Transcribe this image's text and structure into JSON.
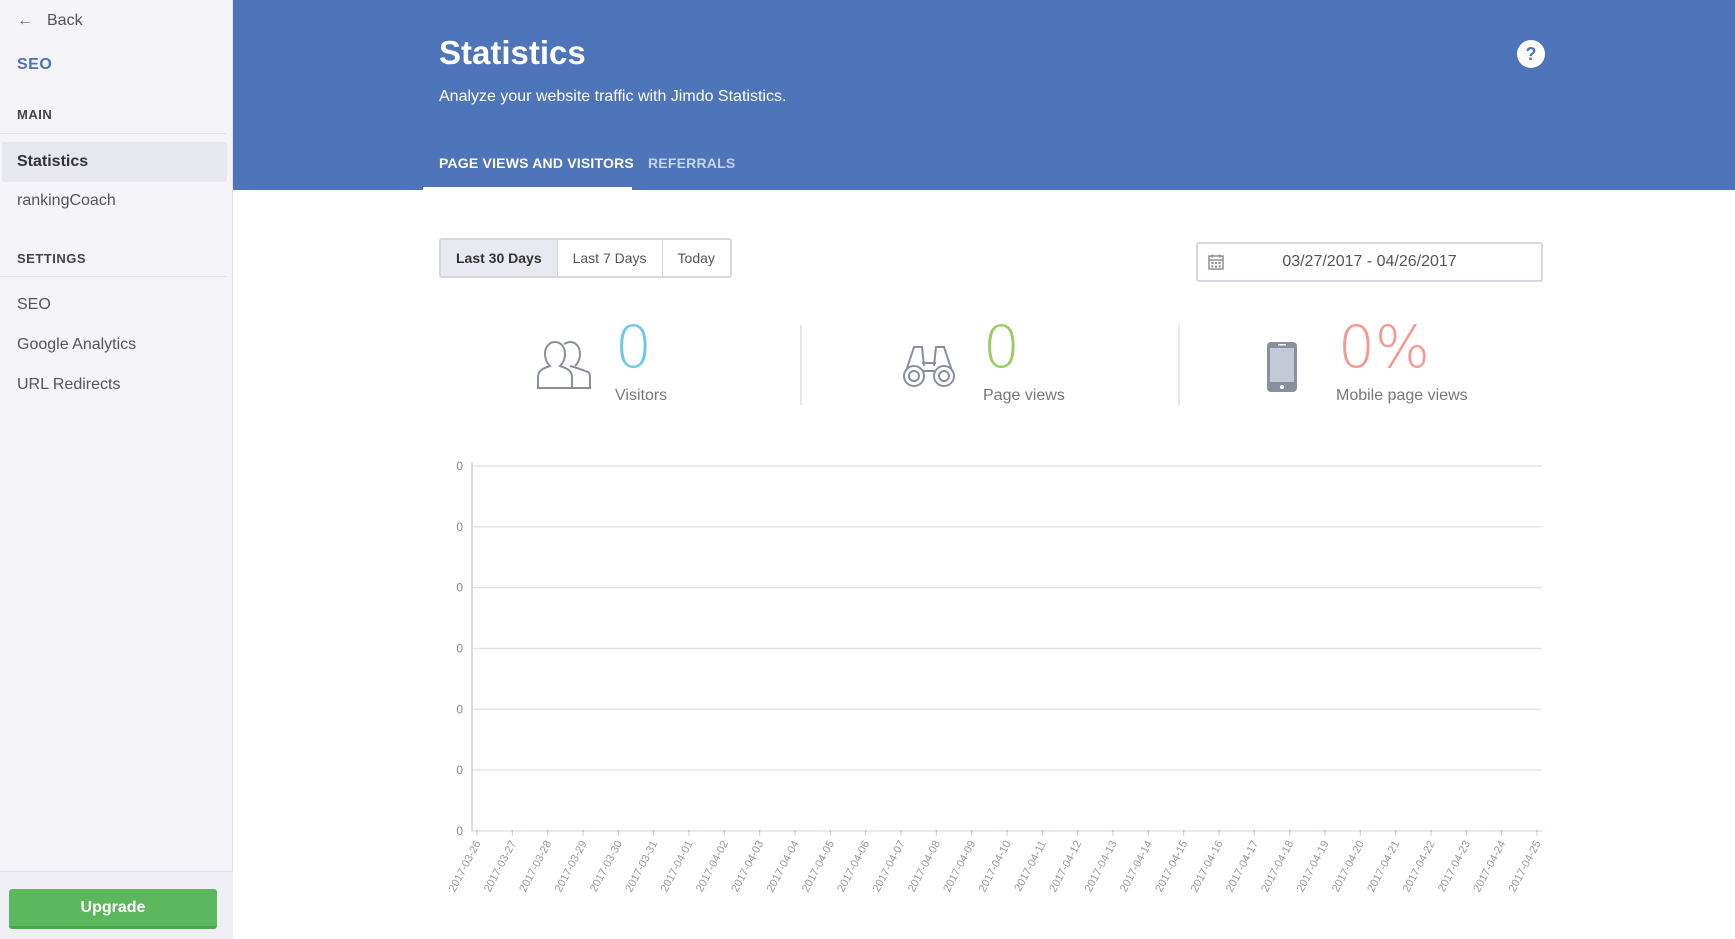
{
  "sidebar": {
    "back_label": "Back",
    "title": "SEO",
    "sections": [
      {
        "label": "MAIN",
        "items": [
          {
            "label": "Statistics",
            "active": true
          },
          {
            "label": "rankingCoach",
            "active": false
          }
        ]
      },
      {
        "label": "SETTINGS",
        "items": [
          {
            "label": "SEO",
            "active": false
          },
          {
            "label": "Google Analytics",
            "active": false
          },
          {
            "label": "URL Redirects",
            "active": false
          }
        ]
      }
    ],
    "upgrade_label": "Upgrade"
  },
  "header": {
    "title": "Statistics",
    "subtitle": "Analyze your website traffic with Jimdo Statistics.",
    "help_label": "?",
    "tabs": [
      {
        "label": "PAGE VIEWS AND VISITORS",
        "active": true
      },
      {
        "label": "REFERRALS",
        "active": false
      }
    ]
  },
  "filters": {
    "ranges": [
      {
        "label": "Last 30 Days",
        "active": true
      },
      {
        "label": "Last 7 Days",
        "active": false
      },
      {
        "label": "Today",
        "active": false
      }
    ],
    "date_range": "03/27/2017 - 04/26/2017"
  },
  "stats": [
    {
      "value": "0",
      "label": "Visitors",
      "icon": "users-icon",
      "color": "#6ec6ee"
    },
    {
      "value": "0",
      "label": "Page views",
      "icon": "binoculars-icon",
      "color": "#9ccb62"
    },
    {
      "value": "0%",
      "label": "Mobile page views",
      "icon": "smartphone-icon",
      "color": "#f4998c"
    }
  ],
  "colors": {
    "header": "#4e74ba",
    "accent": "#4a72b8",
    "upgrade": "#5cb85c"
  },
  "chart_data": {
    "type": "line",
    "x": [
      "2017-03-26",
      "2017-03-27",
      "2017-03-28",
      "2017-03-29",
      "2017-03-30",
      "2017-03-31",
      "2017-04-01",
      "2017-04-02",
      "2017-04-03",
      "2017-04-04",
      "2017-04-05",
      "2017-04-06",
      "2017-04-07",
      "2017-04-08",
      "2017-04-09",
      "2017-04-10",
      "2017-04-11",
      "2017-04-12",
      "2017-04-13",
      "2017-04-14",
      "2017-04-15",
      "2017-04-16",
      "2017-04-17",
      "2017-04-18",
      "2017-04-19",
      "2017-04-20",
      "2017-04-21",
      "2017-04-22",
      "2017-04-23",
      "2017-04-24",
      "2017-04-25"
    ],
    "y_ticks": [
      "0",
      "0",
      "0",
      "0",
      "0",
      "0",
      "0"
    ],
    "series": [
      {
        "values": [
          0,
          0,
          0,
          0,
          0,
          0,
          0,
          0,
          0,
          0,
          0,
          0,
          0,
          0,
          0,
          0,
          0,
          0,
          0,
          0,
          0,
          0,
          0,
          0,
          0,
          0,
          0,
          0,
          0,
          0,
          0
        ]
      }
    ],
    "grid": true
  }
}
